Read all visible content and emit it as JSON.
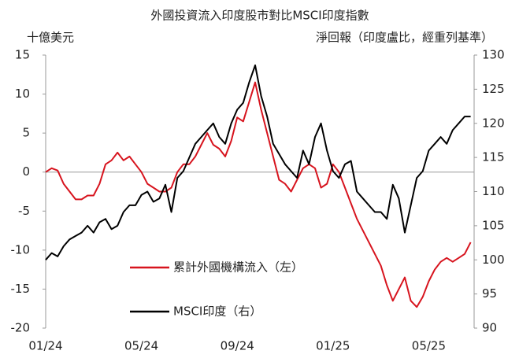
{
  "chart_data": {
    "type": "line",
    "title": "外國投資流入印度股市對比MSCI印度指數",
    "y_label": "十億美元",
    "y2_label": "淨回報（印度盧比，經重列基準）",
    "categories": [
      "01/24",
      null,
      null,
      null,
      null,
      null,
      null,
      null,
      null,
      null,
      null,
      null,
      null,
      null,
      null,
      null,
      "05/24",
      null,
      null,
      null,
      null,
      null,
      null,
      null,
      null,
      null,
      null,
      null,
      null,
      null,
      null,
      null,
      "09/24",
      null,
      null,
      null,
      null,
      null,
      null,
      null,
      null,
      null,
      null,
      null,
      null,
      null,
      null,
      null,
      "01/25",
      null,
      null,
      null,
      null,
      null,
      null,
      null,
      null,
      null,
      null,
      null,
      null,
      null,
      null,
      null,
      "05/25",
      null,
      null,
      null,
      null,
      null,
      null,
      null
    ],
    "series": [
      {
        "name": "累計外國機構流入（左）",
        "color": "#d7141e",
        "axis": "y",
        "values": [
          0,
          0.5,
          0.2,
          -1.5,
          -2.5,
          -3.5,
          -3.5,
          -3,
          -3,
          -1.5,
          1,
          1.5,
          2.5,
          1.5,
          2,
          1,
          0,
          -1.5,
          -2,
          -2.5,
          -2.5,
          -2,
          0,
          1,
          1,
          2,
          3.5,
          5,
          3.5,
          3,
          2,
          4,
          7,
          6.5,
          9,
          11.5,
          8,
          5,
          2,
          -1,
          -1.5,
          -2.5,
          -1,
          0.5,
          1,
          0.5,
          -2,
          -1.5,
          1,
          0,
          -2,
          -4,
          -6,
          -7.5,
          -9,
          -10.5,
          -12,
          -14.5,
          -16.5,
          -15,
          -13.5,
          -16.5,
          -17.3,
          -16,
          -14,
          -12.5,
          -11.5,
          -11,
          -11.5,
          -11,
          -10.5,
          -9
        ]
      },
      {
        "name": "MSCI印度（右）",
        "color": "#000000",
        "axis": "y2",
        "values": [
          100,
          101,
          100.5,
          102,
          103,
          103.5,
          104,
          105,
          104,
          105.5,
          106,
          104.5,
          105,
          107,
          108,
          108,
          109.5,
          110,
          108.5,
          109,
          111,
          107,
          112,
          113,
          115,
          117,
          118,
          119,
          120,
          118,
          117,
          120,
          122,
          123,
          126,
          128.5,
          124,
          121,
          117,
          115.5,
          114,
          113,
          112,
          116,
          114,
          118,
          120,
          116,
          113,
          112,
          114,
          114.5,
          110,
          109,
          108,
          107,
          107,
          106,
          111,
          109,
          104,
          108,
          112,
          113,
          116,
          117,
          118,
          117,
          119,
          120,
          121,
          121
        ]
      }
    ],
    "ylim": [
      -20,
      15
    ],
    "yticks": [
      -20,
      -15,
      -10,
      -5,
      0,
      5,
      10,
      15
    ],
    "y2lim": [
      90,
      130
    ],
    "y2ticks": [
      90,
      95,
      100,
      105,
      110,
      115,
      120,
      125,
      130
    ]
  }
}
